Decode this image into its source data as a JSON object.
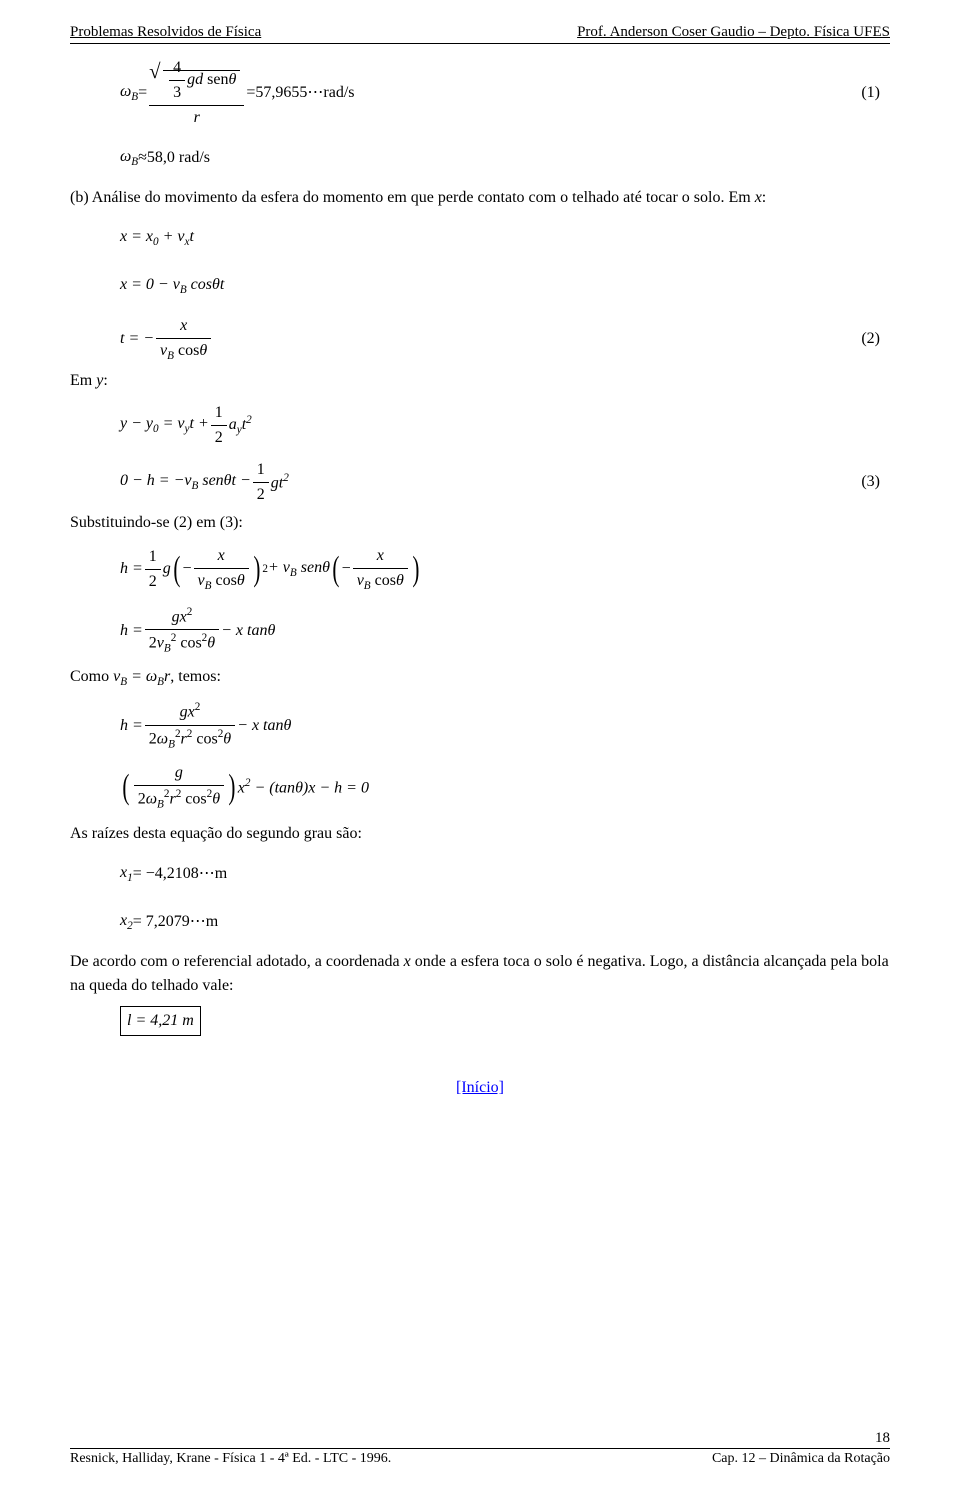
{
  "header": {
    "left": "Problemas Resolvidos de Física",
    "right": "Prof. Anderson Coser Gaudio – Depto. Física UFES"
  },
  "equations": {
    "eq1_num": "(1)",
    "eq1_value": "57,9655",
    "eq1_unit": "rad/s",
    "eq1b_value": "58,0 rad/s",
    "eq2_num": "(2)",
    "eq3_num": "(3)"
  },
  "text": {
    "para_b": "(b) Análise do movimento da esfera do momento em que perde contato com o telhado até tocar o solo. Em ",
    "para_b_x": "x",
    "para_b_colon": ":",
    "em_y": "Em ",
    "em_y_var": "y",
    "em_y_colon": ":",
    "subst": "Substituindo-se (2) em (3):",
    "como": "Como ",
    "como_rest": ", temos:",
    "raizes": "As raízes desta equação do segundo grau são:",
    "x1_eq": "= −4,2108",
    "x1_unit": "m",
    "x2_eq": "= 7,2079",
    "x2_unit": "m",
    "acordo": "De acordo com o referencial adotado, a coordenada ",
    "acordo_x": "x",
    "acordo_rest": " onde a esfera toca o solo é negativa. Logo, a distância alcançada pela bola na queda do telhado vale:",
    "boxed": "l = 4,21 m",
    "inicio": "[Início]"
  },
  "footer": {
    "left": "Resnick, Halliday, Krane - Física 1 - 4ª Ed. - LTC - 1996.",
    "center": "Cap. 12 – Dinâmica da Rotação",
    "page": "18"
  }
}
